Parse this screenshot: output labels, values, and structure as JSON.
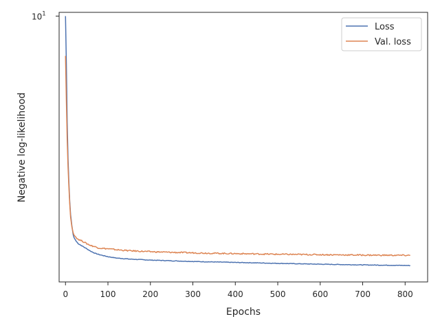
{
  "chart_data": {
    "type": "line",
    "title": "",
    "xlabel": "Epochs",
    "ylabel": "Negative log-likelihood",
    "xlim": [
      -15,
      853
    ],
    "ylim_log": [
      2.45,
      10.2
    ],
    "yscale": "log",
    "grid": false,
    "legend_position": "top-right",
    "x_ticks": [
      0,
      100,
      200,
      300,
      400,
      500,
      600,
      700,
      800
    ],
    "x_tick_labels": [
      "0",
      "100",
      "200",
      "300",
      "400",
      "500",
      "600",
      "700",
      "800"
    ],
    "y_tick_base": "10",
    "y_tick_exp": "1",
    "y_tick_value": 10,
    "series": [
      {
        "name": "Loss",
        "color": "#4c72b0",
        "x": [
          0,
          2,
          4,
          6,
          8,
          10,
          12,
          15,
          18,
          20,
          25,
          30,
          40,
          50,
          60,
          70,
          80,
          100,
          120,
          150,
          200,
          250,
          300,
          350,
          400,
          450,
          500,
          550,
          600,
          650,
          700,
          750,
          800,
          812
        ],
        "y": [
          10.0,
          7.8,
          5.7,
          4.7,
          4.15,
          3.75,
          3.5,
          3.3,
          3.15,
          3.1,
          3.04,
          3.0,
          2.96,
          2.92,
          2.88,
          2.85,
          2.83,
          2.8,
          2.78,
          2.765,
          2.75,
          2.74,
          2.73,
          2.723,
          2.716,
          2.71,
          2.703,
          2.697,
          2.691,
          2.686,
          2.681,
          2.677,
          2.673,
          2.672
        ]
      },
      {
        "name": "Val. loss",
        "color": "#dd8452",
        "x": [
          0,
          2,
          4,
          6,
          8,
          10,
          12,
          15,
          18,
          20,
          25,
          30,
          40,
          50,
          60,
          70,
          80,
          100,
          120,
          150,
          200,
          250,
          300,
          350,
          400,
          450,
          500,
          550,
          600,
          650,
          700,
          750,
          800,
          812
        ],
        "y": [
          8.1,
          6.4,
          5.2,
          4.5,
          4.05,
          3.7,
          3.45,
          3.28,
          3.18,
          3.14,
          3.1,
          3.07,
          3.04,
          3.0,
          2.97,
          2.95,
          2.93,
          2.92,
          2.905,
          2.89,
          2.875,
          2.865,
          2.858,
          2.851,
          2.846,
          2.841,
          2.836,
          2.833,
          2.83,
          2.827,
          2.824,
          2.822,
          2.82,
          2.82
        ]
      }
    ]
  }
}
